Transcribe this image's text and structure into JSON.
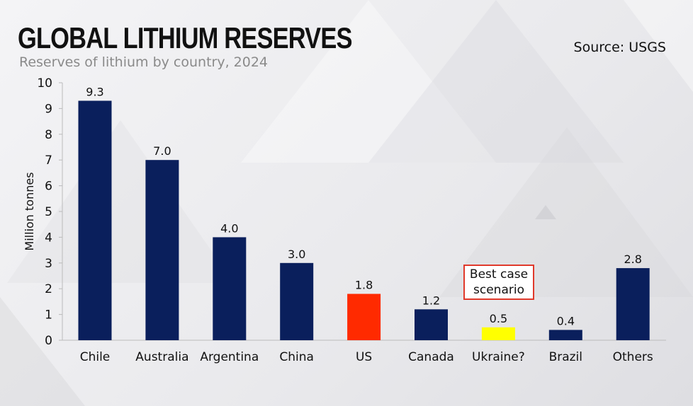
{
  "header": {
    "title": "GLOBAL LITHIUM RESERVES",
    "subtitle": "Reserves of lithium by country, 2024",
    "source": "Source: USGS"
  },
  "chart_data": {
    "type": "bar",
    "title": "GLOBAL LITHIUM RESERVES",
    "subtitle": "Reserves of lithium by country, 2024",
    "ylabel": "Million tonnes",
    "xlabel": "",
    "ylim": [
      0,
      10
    ],
    "yticks": [
      0,
      1,
      2,
      3,
      4,
      5,
      6,
      7,
      8,
      9,
      10
    ],
    "grid": false,
    "categories": [
      "Chile",
      "Australia",
      "Argentina",
      "China",
      "US",
      "Canada",
      "Ukraine?",
      "Brazil",
      "Others"
    ],
    "values": [
      9.3,
      7.0,
      4.0,
      3.0,
      1.8,
      1.2,
      0.5,
      0.4,
      2.8
    ],
    "value_labels": [
      "9.3",
      "7.0",
      "4.0",
      "3.0",
      "1.8",
      "1.2",
      "0.5",
      "0.4",
      "2.8"
    ],
    "colors": [
      "#0a1f5c",
      "#0a1f5c",
      "#0a1f5c",
      "#0a1f5c",
      "#ff2a00",
      "#0a1f5c",
      "#ffff00",
      "#0a1f5c",
      "#0a1f5c"
    ],
    "annotation": {
      "text_line1": "Best case",
      "text_line2": "scenario",
      "target": "Ukraine?",
      "border_color": "#e0392b"
    }
  }
}
